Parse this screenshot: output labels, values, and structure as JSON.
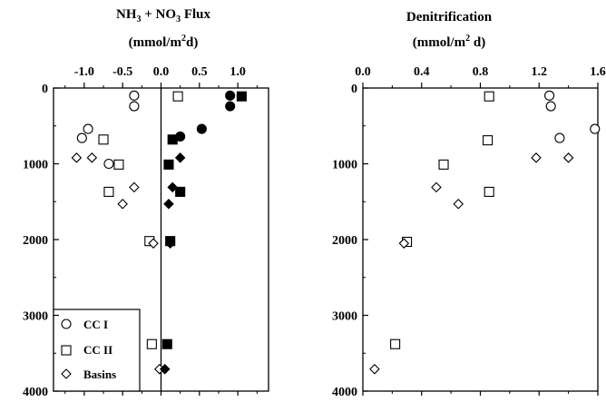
{
  "chart_data": [
    {
      "type": "scatter",
      "title_parts": [
        "NH",
        "3",
        " + NO",
        "3",
        " Flux"
      ],
      "units_parts": [
        "(mmol/m",
        "2",
        "d)"
      ],
      "x_ticks": [
        "-1.0",
        "-0.5",
        "0.0",
        "0.5",
        "1.0"
      ],
      "x_tick_values": [
        -1.0,
        -0.5,
        0.0,
        0.5,
        1.0
      ],
      "xlim": [
        -1.4,
        1.4
      ],
      "y_ticks": [
        "0",
        "1000",
        "2000",
        "3000",
        "4000"
      ],
      "y_tick_values": [
        0,
        1000,
        2000,
        3000,
        4000
      ],
      "ylim": [
        0,
        4000
      ],
      "y_inverted": true,
      "zero_line": true,
      "legend": {
        "placement": "bottom-left",
        "entries": [
          {
            "label": "CC I",
            "marker": "circle"
          },
          {
            "label": "CC II",
            "marker": "square"
          },
          {
            "label": "Basins",
            "marker": "diamond"
          }
        ]
      },
      "series": [
        {
          "legend_index": 0,
          "marker": "circle",
          "filled": false,
          "points": [
            {
              "x": -0.35,
              "y": 100
            },
            {
              "x": -0.35,
              "y": 240
            },
            {
              "x": -0.95,
              "y": 540
            },
            {
              "x": -1.03,
              "y": 660
            },
            {
              "x": -0.68,
              "y": 1000
            }
          ]
        },
        {
          "legend_index": 0,
          "marker": "circle",
          "filled": true,
          "points": [
            {
              "x": 0.9,
              "y": 100
            },
            {
              "x": 0.9,
              "y": 240
            },
            {
              "x": 0.25,
              "y": 640
            },
            {
              "x": 0.53,
              "y": 540
            }
          ]
        },
        {
          "legend_index": 1,
          "marker": "square",
          "filled": false,
          "points": [
            {
              "x": 0.22,
              "y": 110
            },
            {
              "x": -0.75,
              "y": 680
            },
            {
              "x": -0.55,
              "y": 1010
            },
            {
              "x": -0.68,
              "y": 1370
            },
            {
              "x": -0.15,
              "y": 2020
            },
            {
              "x": -0.12,
              "y": 3380
            }
          ]
        },
        {
          "legend_index": 1,
          "marker": "square",
          "filled": true,
          "points": [
            {
              "x": 1.05,
              "y": 110
            },
            {
              "x": 0.15,
              "y": 680
            },
            {
              "x": 0.1,
              "y": 1010
            },
            {
              "x": 0.25,
              "y": 1370
            },
            {
              "x": 0.12,
              "y": 2020
            },
            {
              "x": 0.08,
              "y": 3380
            }
          ]
        },
        {
          "legend_index": 2,
          "marker": "diamond",
          "filled": false,
          "points": [
            {
              "x": -1.1,
              "y": 920
            },
            {
              "x": -0.9,
              "y": 920
            },
            {
              "x": -0.35,
              "y": 1310
            },
            {
              "x": -0.5,
              "y": 1530
            },
            {
              "x": -0.1,
              "y": 2050
            },
            {
              "x": -0.02,
              "y": 3710
            }
          ]
        },
        {
          "legend_index": 2,
          "marker": "diamond",
          "filled": true,
          "points": [
            {
              "x": 0.25,
              "y": 920
            },
            {
              "x": 0.15,
              "y": 1310
            },
            {
              "x": 0.1,
              "y": 1530
            },
            {
              "x": 0.12,
              "y": 2050
            },
            {
              "x": 0.05,
              "y": 3710
            }
          ]
        }
      ]
    },
    {
      "type": "scatter",
      "title_parts": [
        "Denitrification"
      ],
      "units_parts": [
        "(mmol/m",
        "2",
        " d)"
      ],
      "x_ticks": [
        "0.0",
        "0.4",
        "0.8",
        "1.2",
        "1.6"
      ],
      "x_tick_values": [
        0.0,
        0.4,
        0.8,
        1.2,
        1.6
      ],
      "xlim": [
        0.0,
        1.6
      ],
      "y_ticks": [
        "0",
        "1000",
        "2000",
        "3000",
        "4000"
      ],
      "y_tick_values": [
        0,
        1000,
        2000,
        3000,
        4000
      ],
      "ylim": [
        0,
        4000
      ],
      "y_inverted": true,
      "zero_line": false,
      "series": [
        {
          "marker": "circle",
          "filled": false,
          "points": [
            {
              "x": 1.27,
              "y": 100
            },
            {
              "x": 1.28,
              "y": 240
            },
            {
              "x": 1.34,
              "y": 660
            },
            {
              "x": 1.58,
              "y": 540
            }
          ]
        },
        {
          "marker": "square",
          "filled": false,
          "points": [
            {
              "x": 0.86,
              "y": 110
            },
            {
              "x": 0.85,
              "y": 690
            },
            {
              "x": 0.55,
              "y": 1010
            },
            {
              "x": 0.86,
              "y": 1370
            },
            {
              "x": 0.3,
              "y": 2030
            },
            {
              "x": 0.22,
              "y": 3380
            }
          ]
        },
        {
          "marker": "diamond",
          "filled": false,
          "points": [
            {
              "x": 1.18,
              "y": 920
            },
            {
              "x": 1.4,
              "y": 920
            },
            {
              "x": 0.5,
              "y": 1310
            },
            {
              "x": 0.65,
              "y": 1530
            },
            {
              "x": 0.28,
              "y": 2050
            },
            {
              "x": 0.08,
              "y": 3710
            }
          ]
        }
      ]
    }
  ]
}
